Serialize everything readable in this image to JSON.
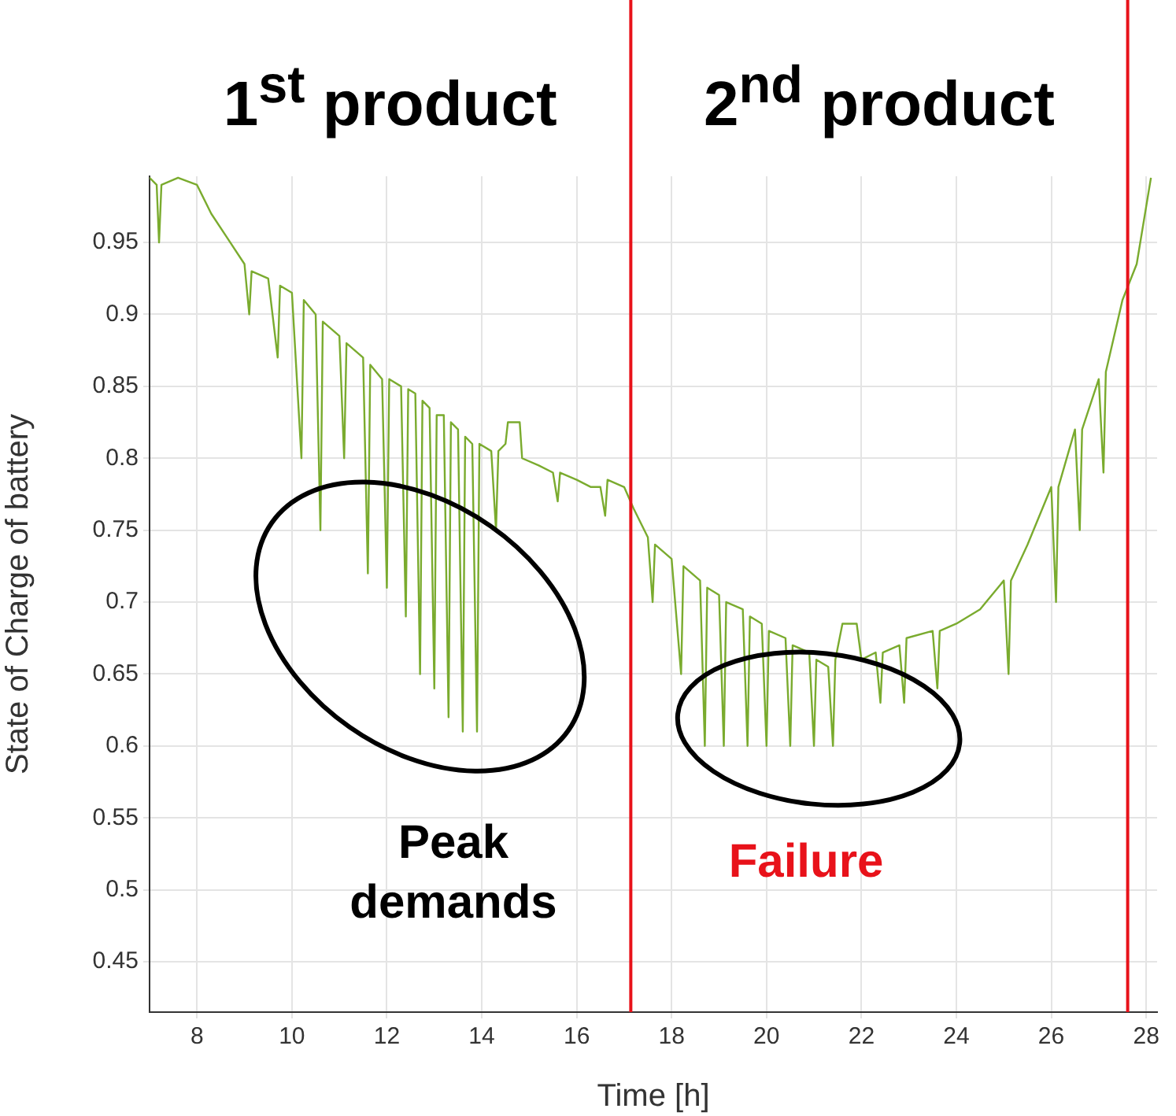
{
  "chart_data": {
    "type": "line",
    "xlabel": "Time [h]",
    "ylabel": "State of Charge of battery",
    "annotations": [
      "1$^{st}$ product",
      "2$^{nd}$ product",
      "Peak demands",
      "Failure"
    ],
    "xlim": [
      7,
      28.23
    ],
    "xticks": [
      8,
      10,
      12,
      14,
      16,
      18,
      20,
      22,
      24,
      26,
      28
    ],
    "ylim": [
      0.415,
      0.996
    ],
    "yticks": [
      0.45,
      0.5,
      0.55,
      0.6,
      0.65,
      0.7,
      0.75,
      0.8,
      0.85,
      0.9,
      0.95
    ],
    "grid": true,
    "legend": false,
    "marker": "none",
    "line_style": "solid",
    "ref_lines": [
      {
        "axis": "x",
        "value": 17.14,
        "color": "#e8121a"
      },
      {
        "axis": "x",
        "value": 27.61,
        "color": "#e8121a"
      }
    ],
    "series": [
      {
        "color": "#7aab2e",
        "x": [
          7.0,
          7.15,
          7.2,
          7.25,
          7.6,
          8.0,
          8.3,
          8.6,
          9.0,
          9.1,
          9.15,
          9.5,
          9.7,
          9.75,
          10.0,
          10.2,
          10.25,
          10.5,
          10.6,
          10.65,
          11.0,
          11.1,
          11.15,
          11.5,
          11.6,
          11.65,
          11.9,
          12.0,
          12.05,
          12.3,
          12.4,
          12.45,
          12.6,
          12.7,
          12.75,
          12.9,
          13.0,
          13.05,
          13.2,
          13.3,
          13.35,
          13.5,
          13.6,
          13.65,
          13.8,
          13.9,
          13.95,
          14.2,
          14.3,
          14.35,
          14.5,
          14.55,
          14.8,
          14.85,
          15.2,
          15.5,
          15.6,
          15.65,
          16.0,
          16.3,
          16.5,
          16.6,
          16.65,
          17.0,
          17.2,
          17.5,
          17.6,
          17.65,
          18.0,
          18.2,
          18.25,
          18.6,
          18.7,
          18.75,
          19.0,
          19.1,
          19.15,
          19.5,
          19.6,
          19.65,
          19.9,
          20.0,
          20.05,
          20.4,
          20.5,
          20.55,
          20.9,
          21.0,
          21.05,
          21.3,
          21.4,
          21.45,
          21.6,
          21.9,
          22.0,
          22.3,
          22.4,
          22.45,
          22.8,
          22.9,
          22.95,
          23.5,
          23.6,
          23.65,
          24.0,
          24.5,
          25.0,
          25.1,
          25.15,
          25.5,
          26.0,
          26.1,
          26.15,
          26.5,
          26.6,
          26.65,
          27.0,
          27.1,
          27.15,
          27.5,
          27.8,
          28.0,
          28.1
        ],
        "values": [
          0.995,
          0.99,
          0.95,
          0.99,
          0.995,
          0.99,
          0.97,
          0.955,
          0.935,
          0.9,
          0.93,
          0.925,
          0.87,
          0.92,
          0.915,
          0.8,
          0.91,
          0.9,
          0.75,
          0.895,
          0.885,
          0.8,
          0.88,
          0.87,
          0.72,
          0.865,
          0.855,
          0.71,
          0.855,
          0.85,
          0.69,
          0.848,
          0.845,
          0.65,
          0.84,
          0.835,
          0.64,
          0.83,
          0.83,
          0.62,
          0.825,
          0.82,
          0.61,
          0.815,
          0.81,
          0.61,
          0.81,
          0.805,
          0.75,
          0.805,
          0.81,
          0.825,
          0.825,
          0.8,
          0.795,
          0.79,
          0.77,
          0.79,
          0.785,
          0.78,
          0.78,
          0.76,
          0.785,
          0.78,
          0.765,
          0.745,
          0.7,
          0.74,
          0.73,
          0.65,
          0.725,
          0.715,
          0.6,
          0.71,
          0.705,
          0.6,
          0.7,
          0.695,
          0.6,
          0.69,
          0.685,
          0.6,
          0.68,
          0.675,
          0.6,
          0.67,
          0.665,
          0.6,
          0.66,
          0.655,
          0.6,
          0.66,
          0.685,
          0.685,
          0.66,
          0.665,
          0.63,
          0.665,
          0.67,
          0.63,
          0.675,
          0.68,
          0.64,
          0.68,
          0.685,
          0.695,
          0.715,
          0.65,
          0.715,
          0.74,
          0.78,
          0.7,
          0.78,
          0.82,
          0.75,
          0.82,
          0.855,
          0.79,
          0.86,
          0.91,
          0.935,
          0.975,
          0.995
        ]
      }
    ]
  }
}
